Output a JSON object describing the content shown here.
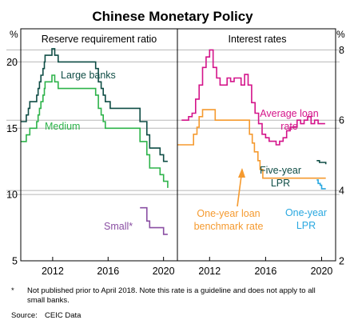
{
  "chart_data": {
    "type": "line",
    "title": "Chinese Monetary Policy",
    "unit_left": "%",
    "unit_right": "%",
    "x_ticks": [
      "2012",
      "2016",
      "2020"
    ],
    "footnote_marker": "*",
    "footnote": "Not published prior to April 2018. Note this rate is a guideline and does not apply to all small banks.",
    "source_label": "Source:",
    "source": "CEIC Data",
    "panels": [
      {
        "title": "Reserve requirement ratio",
        "ylim": [
          5,
          22.5
        ],
        "xlim": [
          2009.7,
          2021
        ],
        "y_ticks": [
          5,
          10,
          15,
          20
        ],
        "series": [
          {
            "name": "Large banks",
            "color": "#0f4d45",
            "label_lines": [
              "Large banks"
            ],
            "points": [
              [
                2009.7,
                15.5
              ],
              [
                2010.1,
                16.0
              ],
              [
                2010.25,
                16.5
              ],
              [
                2010.35,
                17.0
              ],
              [
                2010.85,
                17.5
              ],
              [
                2010.95,
                18.0
              ],
              [
                2011.05,
                18.5
              ],
              [
                2011.15,
                19.0
              ],
              [
                2011.3,
                19.5
              ],
              [
                2011.4,
                20.0
              ],
              [
                2011.45,
                20.5
              ],
              [
                2011.95,
                21.0
              ],
              [
                2012.15,
                20.5
              ],
              [
                2012.4,
                20.0
              ],
              [
                2015.1,
                19.5
              ],
              [
                2015.3,
                18.5
              ],
              [
                2015.5,
                18.0
              ],
              [
                2015.65,
                17.5
              ],
              [
                2015.8,
                17.0
              ],
              [
                2016.15,
                16.5
              ],
              [
                2018.3,
                15.5
              ],
              [
                2018.8,
                14.5
              ],
              [
                2019.0,
                13.5
              ],
              [
                2019.75,
                13.0
              ],
              [
                2020.0,
                12.5
              ],
              [
                2020.3,
                12.5
              ]
            ]
          },
          {
            "name": "Medium",
            "color": "#2db34a",
            "label_lines": [
              "Medium"
            ],
            "points": [
              [
                2009.7,
                14.0
              ],
              [
                2010.1,
                14.5
              ],
              [
                2010.35,
                15.0
              ],
              [
                2010.85,
                15.5
              ],
              [
                2010.95,
                16.0
              ],
              [
                2011.05,
                16.5
              ],
              [
                2011.15,
                17.0
              ],
              [
                2011.3,
                17.5
              ],
              [
                2011.4,
                18.0
              ],
              [
                2011.45,
                18.5
              ],
              [
                2011.95,
                19.0
              ],
              [
                2012.15,
                18.5
              ],
              [
                2012.4,
                18.0
              ],
              [
                2015.1,
                17.5
              ],
              [
                2015.3,
                16.5
              ],
              [
                2015.5,
                16.0
              ],
              [
                2015.65,
                15.5
              ],
              [
                2015.8,
                15.0
              ],
              [
                2018.3,
                14.0
              ],
              [
                2018.8,
                13.0
              ],
              [
                2019.0,
                12.0
              ],
              [
                2019.75,
                11.5
              ],
              [
                2020.0,
                11.0
              ],
              [
                2020.3,
                10.5
              ]
            ]
          },
          {
            "name": "Small*",
            "color": "#8a4fa3",
            "label_lines": [
              "Small*"
            ],
            "points": [
              [
                2018.3,
                9.0
              ],
              [
                2018.8,
                8.0
              ],
              [
                2019.0,
                7.5
              ],
              [
                2019.75,
                7.5
              ],
              [
                2020.0,
                7.0
              ],
              [
                2020.3,
                7.0
              ]
            ]
          }
        ]
      },
      {
        "title": "Interest rates",
        "ylim": [
          2,
          8.6
        ],
        "xlim": [
          2009.7,
          2021
        ],
        "y_ticks": [
          2,
          4,
          6,
          8
        ],
        "series": [
          {
            "name": "Average loan rate",
            "color": "#d4148a",
            "label_lines": [
              "Average loan",
              "rate"
            ],
            "points": [
              [
                2010.0,
                6.0
              ],
              [
                2010.25,
                6.0
              ],
              [
                2010.5,
                6.1
              ],
              [
                2010.75,
                6.2
              ],
              [
                2011.0,
                6.6
              ],
              [
                2011.25,
                7.0
              ],
              [
                2011.5,
                7.5
              ],
              [
                2011.75,
                7.8
              ],
              [
                2012.0,
                8.0
              ],
              [
                2012.25,
                7.5
              ],
              [
                2012.5,
                7.2
              ],
              [
                2012.75,
                7.0
              ],
              [
                2013.0,
                7.0
              ],
              [
                2013.25,
                7.2
              ],
              [
                2013.5,
                7.1
              ],
              [
                2013.75,
                7.2
              ],
              [
                2014.0,
                7.2
              ],
              [
                2014.25,
                7.0
              ],
              [
                2014.5,
                7.3
              ],
              [
                2014.75,
                7.0
              ],
              [
                2015.0,
                6.5
              ],
              [
                2015.25,
                6.2
              ],
              [
                2015.5,
                5.9
              ],
              [
                2015.75,
                5.6
              ],
              [
                2016.0,
                5.5
              ],
              [
                2016.25,
                5.4
              ],
              [
                2016.5,
                5.4
              ],
              [
                2016.75,
                5.3
              ],
              [
                2017.0,
                5.4
              ],
              [
                2017.25,
                5.5
              ],
              [
                2017.5,
                5.7
              ],
              [
                2017.75,
                5.8
              ],
              [
                2018.0,
                5.8
              ],
              [
                2018.25,
                6.0
              ],
              [
                2018.5,
                5.9
              ],
              [
                2018.75,
                6.0
              ],
              [
                2019.0,
                6.1
              ],
              [
                2019.25,
                5.9
              ],
              [
                2019.5,
                6.0
              ],
              [
                2019.75,
                5.9
              ],
              [
                2020.0,
                5.9
              ],
              [
                2020.25,
                5.9
              ]
            ]
          },
          {
            "name": "One-year loan benchmark rate",
            "color": "#f59a2f",
            "label_lines": [
              "One-year loan",
              "benchmark rate"
            ],
            "points": [
              [
                2009.7,
                5.3
              ],
              [
                2010.8,
                5.3
              ],
              [
                2010.85,
                5.6
              ],
              [
                2011.1,
                5.8
              ],
              [
                2011.25,
                6.1
              ],
              [
                2011.5,
                6.3
              ],
              [
                2012.4,
                6.0
              ],
              [
                2012.5,
                6.0
              ],
              [
                2014.85,
                5.6
              ],
              [
                2015.05,
                5.35
              ],
              [
                2015.2,
                5.1
              ],
              [
                2015.45,
                4.85
              ],
              [
                2015.6,
                4.6
              ],
              [
                2015.8,
                4.35
              ],
              [
                2020.3,
                4.35
              ]
            ]
          },
          {
            "name": "Five-year LPR",
            "color": "#0f4d45",
            "label_lines": [
              "Five-year",
              "LPR"
            ],
            "points": [
              [
                2019.65,
                4.85
              ],
              [
                2019.85,
                4.8
              ],
              [
                2020.3,
                4.75
              ]
            ]
          },
          {
            "name": "One-year LPR",
            "color": "#29a8e0",
            "label_lines": [
              "One-year",
              "LPR"
            ],
            "points": [
              [
                2019.65,
                4.3
              ],
              [
                2019.75,
                4.2
              ],
              [
                2019.9,
                4.15
              ],
              [
                2020.0,
                4.05
              ],
              [
                2020.3,
                4.05
              ]
            ]
          }
        ]
      }
    ]
  }
}
